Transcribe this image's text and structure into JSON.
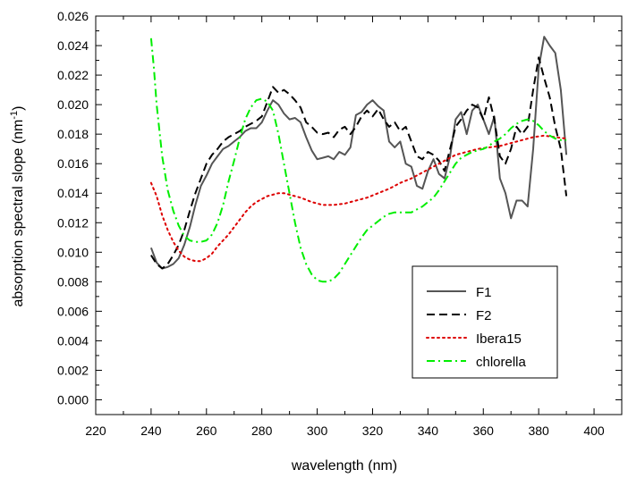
{
  "chart_data": {
    "type": "line",
    "xlabel": "wavelength (nm)",
    "ylabel": {
      "main": "absorption spectral slope (nm",
      "superscript": "-1",
      "close": ")"
    },
    "xlim": [
      220,
      410
    ],
    "ylim": [
      -0.001,
      0.026
    ],
    "x_ticks": [
      "220",
      "240",
      "260",
      "280",
      "300",
      "320",
      "340",
      "360",
      "380",
      "400"
    ],
    "y_ticks": [
      "0.000",
      "0.002",
      "0.004",
      "0.006",
      "0.008",
      "0.010",
      "0.012",
      "0.014",
      "0.016",
      "0.018",
      "0.020",
      "0.022",
      "0.024",
      "0.026"
    ],
    "grid": false,
    "legend_position": "bottom-right",
    "series": [
      {
        "name": "F1",
        "color": "#555555",
        "style": "solid",
        "points": [
          [
            240,
            0.0103
          ],
          [
            242,
            0.0093
          ],
          [
            244,
            0.0089
          ],
          [
            246,
            0.009
          ],
          [
            248,
            0.0092
          ],
          [
            250,
            0.0096
          ],
          [
            252,
            0.0105
          ],
          [
            254,
            0.0117
          ],
          [
            256,
            0.0132
          ],
          [
            258,
            0.0145
          ],
          [
            260,
            0.0152
          ],
          [
            262,
            0.016
          ],
          [
            264,
            0.0165
          ],
          [
            266,
            0.017
          ],
          [
            268,
            0.0172
          ],
          [
            270,
            0.0175
          ],
          [
            272,
            0.0178
          ],
          [
            274,
            0.0182
          ],
          [
            276,
            0.0184
          ],
          [
            278,
            0.0184
          ],
          [
            280,
            0.0188
          ],
          [
            282,
            0.0196
          ],
          [
            284,
            0.0203
          ],
          [
            286,
            0.02
          ],
          [
            288,
            0.0194
          ],
          [
            290,
            0.019
          ],
          [
            292,
            0.0191
          ],
          [
            294,
            0.0188
          ],
          [
            296,
            0.0178
          ],
          [
            298,
            0.0169
          ],
          [
            300,
            0.0163
          ],
          [
            302,
            0.0164
          ],
          [
            304,
            0.0165
          ],
          [
            306,
            0.0163
          ],
          [
            308,
            0.0168
          ],
          [
            310,
            0.0166
          ],
          [
            312,
            0.0171
          ],
          [
            314,
            0.0193
          ],
          [
            316,
            0.0195
          ],
          [
            318,
            0.02
          ],
          [
            320,
            0.0203
          ],
          [
            322,
            0.0199
          ],
          [
            324,
            0.0196
          ],
          [
            326,
            0.0175
          ],
          [
            328,
            0.0171
          ],
          [
            330,
            0.0175
          ],
          [
            332,
            0.016
          ],
          [
            334,
            0.0158
          ],
          [
            336,
            0.0145
          ],
          [
            338,
            0.0143
          ],
          [
            340,
            0.0155
          ],
          [
            342,
            0.0163
          ],
          [
            344,
            0.0153
          ],
          [
            346,
            0.015
          ],
          [
            348,
            0.0165
          ],
          [
            350,
            0.019
          ],
          [
            352,
            0.0195
          ],
          [
            354,
            0.018
          ],
          [
            356,
            0.0196
          ],
          [
            358,
            0.02
          ],
          [
            360,
            0.019
          ],
          [
            362,
            0.018
          ],
          [
            364,
            0.0192
          ],
          [
            366,
            0.015
          ],
          [
            368,
            0.014
          ],
          [
            370,
            0.0123
          ],
          [
            372,
            0.0135
          ],
          [
            374,
            0.0135
          ],
          [
            376,
            0.0131
          ],
          [
            378,
            0.017
          ],
          [
            380,
            0.0225
          ],
          [
            382,
            0.0246
          ],
          [
            384,
            0.024
          ],
          [
            386,
            0.0235
          ],
          [
            388,
            0.021
          ],
          [
            390,
            0.0166
          ]
        ]
      },
      {
        "name": "F2",
        "color": "#000000",
        "style": "dashed",
        "points": [
          [
            240,
            0.0098
          ],
          [
            242,
            0.0092
          ],
          [
            244,
            0.0089
          ],
          [
            246,
            0.0092
          ],
          [
            248,
            0.0098
          ],
          [
            250,
            0.0105
          ],
          [
            252,
            0.0115
          ],
          [
            254,
            0.0128
          ],
          [
            256,
            0.014
          ],
          [
            258,
            0.015
          ],
          [
            260,
            0.016
          ],
          [
            262,
            0.0166
          ],
          [
            264,
            0.017
          ],
          [
            266,
            0.0175
          ],
          [
            268,
            0.0178
          ],
          [
            270,
            0.018
          ],
          [
            272,
            0.0182
          ],
          [
            274,
            0.0185
          ],
          [
            276,
            0.0187
          ],
          [
            278,
            0.0189
          ],
          [
            280,
            0.0192
          ],
          [
            282,
            0.0202
          ],
          [
            284,
            0.0212
          ],
          [
            286,
            0.0208
          ],
          [
            288,
            0.021
          ],
          [
            290,
            0.0207
          ],
          [
            292,
            0.0203
          ],
          [
            294,
            0.0198
          ],
          [
            296,
            0.0188
          ],
          [
            298,
            0.0185
          ],
          [
            300,
            0.0181
          ],
          [
            302,
            0.018
          ],
          [
            304,
            0.0181
          ],
          [
            306,
            0.0178
          ],
          [
            308,
            0.0183
          ],
          [
            310,
            0.0185
          ],
          [
            312,
            0.018
          ],
          [
            314,
            0.0185
          ],
          [
            316,
            0.0192
          ],
          [
            318,
            0.0196
          ],
          [
            320,
            0.0192
          ],
          [
            322,
            0.0197
          ],
          [
            324,
            0.019
          ],
          [
            326,
            0.0185
          ],
          [
            328,
            0.0188
          ],
          [
            330,
            0.0182
          ],
          [
            332,
            0.0185
          ],
          [
            334,
            0.0175
          ],
          [
            336,
            0.0165
          ],
          [
            338,
            0.0163
          ],
          [
            340,
            0.0168
          ],
          [
            342,
            0.0166
          ],
          [
            344,
            0.0162
          ],
          [
            346,
            0.0155
          ],
          [
            348,
            0.017
          ],
          [
            350,
            0.0185
          ],
          [
            352,
            0.019
          ],
          [
            354,
            0.0196
          ],
          [
            356,
            0.02
          ],
          [
            358,
            0.0198
          ],
          [
            360,
            0.019
          ],
          [
            362,
            0.0205
          ],
          [
            364,
            0.019
          ],
          [
            366,
            0.0165
          ],
          [
            368,
            0.016
          ],
          [
            370,
            0.017
          ],
          [
            372,
            0.0185
          ],
          [
            374,
            0.018
          ],
          [
            376,
            0.0185
          ],
          [
            378,
            0.021
          ],
          [
            380,
            0.0232
          ],
          [
            382,
            0.0218
          ],
          [
            384,
            0.0205
          ],
          [
            386,
            0.0185
          ],
          [
            388,
            0.017
          ],
          [
            390,
            0.0138
          ]
        ]
      },
      {
        "name": "Ibera15",
        "color": "#dd0000",
        "style": "dotted",
        "points": [
          [
            240,
            0.0147
          ],
          [
            242,
            0.0138
          ],
          [
            244,
            0.0125
          ],
          [
            246,
            0.0115
          ],
          [
            248,
            0.0107
          ],
          [
            250,
            0.0101
          ],
          [
            252,
            0.0097
          ],
          [
            254,
            0.0095
          ],
          [
            256,
            0.0094
          ],
          [
            258,
            0.0094
          ],
          [
            260,
            0.0096
          ],
          [
            262,
            0.0099
          ],
          [
            264,
            0.0104
          ],
          [
            266,
            0.0108
          ],
          [
            268,
            0.0112
          ],
          [
            270,
            0.0117
          ],
          [
            272,
            0.0122
          ],
          [
            274,
            0.0127
          ],
          [
            276,
            0.0131
          ],
          [
            278,
            0.0134
          ],
          [
            280,
            0.0136
          ],
          [
            282,
            0.0138
          ],
          [
            284,
            0.0139
          ],
          [
            286,
            0.014
          ],
          [
            288,
            0.014
          ],
          [
            290,
            0.0139
          ],
          [
            294,
            0.0137
          ],
          [
            298,
            0.0134
          ],
          [
            302,
            0.0132
          ],
          [
            306,
            0.0132
          ],
          [
            310,
            0.0133
          ],
          [
            314,
            0.0135
          ],
          [
            318,
            0.0137
          ],
          [
            322,
            0.014
          ],
          [
            326,
            0.0143
          ],
          [
            330,
            0.0147
          ],
          [
            334,
            0.015
          ],
          [
            338,
            0.0154
          ],
          [
            342,
            0.0158
          ],
          [
            346,
            0.0162
          ],
          [
            350,
            0.0166
          ],
          [
            354,
            0.0168
          ],
          [
            358,
            0.017
          ],
          [
            362,
            0.0171
          ],
          [
            366,
            0.0172
          ],
          [
            370,
            0.0174
          ],
          [
            374,
            0.0176
          ],
          [
            378,
            0.0178
          ],
          [
            382,
            0.0179
          ],
          [
            386,
            0.0178
          ],
          [
            390,
            0.0177
          ]
        ]
      },
      {
        "name": "chlorella",
        "color": "#00ee00",
        "style": "dashdot",
        "points": [
          [
            240,
            0.0245
          ],
          [
            241,
            0.0225
          ],
          [
            242,
            0.02
          ],
          [
            244,
            0.0165
          ],
          [
            246,
            0.0142
          ],
          [
            248,
            0.0128
          ],
          [
            250,
            0.0118
          ],
          [
            252,
            0.0111
          ],
          [
            254,
            0.0108
          ],
          [
            256,
            0.0107
          ],
          [
            258,
            0.0107
          ],
          [
            260,
            0.0108
          ],
          [
            262,
            0.0112
          ],
          [
            264,
            0.012
          ],
          [
            266,
            0.0132
          ],
          [
            268,
            0.0148
          ],
          [
            270,
            0.0162
          ],
          [
            272,
            0.0177
          ],
          [
            274,
            0.019
          ],
          [
            276,
            0.0198
          ],
          [
            278,
            0.0203
          ],
          [
            280,
            0.0204
          ],
          [
            282,
            0.0202
          ],
          [
            284,
            0.0196
          ],
          [
            286,
            0.018
          ],
          [
            288,
            0.016
          ],
          [
            290,
            0.014
          ],
          [
            292,
            0.012
          ],
          [
            294,
            0.0103
          ],
          [
            296,
            0.0092
          ],
          [
            298,
            0.0085
          ],
          [
            300,
            0.0081
          ],
          [
            302,
            0.008
          ],
          [
            304,
            0.008
          ],
          [
            306,
            0.0082
          ],
          [
            308,
            0.0086
          ],
          [
            310,
            0.0092
          ],
          [
            312,
            0.0098
          ],
          [
            314,
            0.0104
          ],
          [
            316,
            0.011
          ],
          [
            318,
            0.0115
          ],
          [
            320,
            0.0118
          ],
          [
            322,
            0.0121
          ],
          [
            324,
            0.0124
          ],
          [
            326,
            0.0126
          ],
          [
            328,
            0.0127
          ],
          [
            330,
            0.0127
          ],
          [
            332,
            0.0127
          ],
          [
            334,
            0.0127
          ],
          [
            336,
            0.0129
          ],
          [
            338,
            0.0131
          ],
          [
            340,
            0.0134
          ],
          [
            342,
            0.0137
          ],
          [
            344,
            0.0142
          ],
          [
            346,
            0.0148
          ],
          [
            348,
            0.0154
          ],
          [
            350,
            0.016
          ],
          [
            352,
            0.0164
          ],
          [
            354,
            0.0166
          ],
          [
            356,
            0.0168
          ],
          [
            358,
            0.0169
          ],
          [
            360,
            0.017
          ],
          [
            362,
            0.0172
          ],
          [
            364,
            0.0175
          ],
          [
            366,
            0.0177
          ],
          [
            368,
            0.018
          ],
          [
            370,
            0.0184
          ],
          [
            372,
            0.0187
          ],
          [
            374,
            0.0189
          ],
          [
            376,
            0.019
          ],
          [
            378,
            0.0189
          ],
          [
            380,
            0.0186
          ],
          [
            382,
            0.0182
          ],
          [
            384,
            0.0179
          ],
          [
            386,
            0.0177
          ],
          [
            388,
            0.0176
          ],
          [
            390,
            0.0176
          ]
        ]
      }
    ]
  }
}
